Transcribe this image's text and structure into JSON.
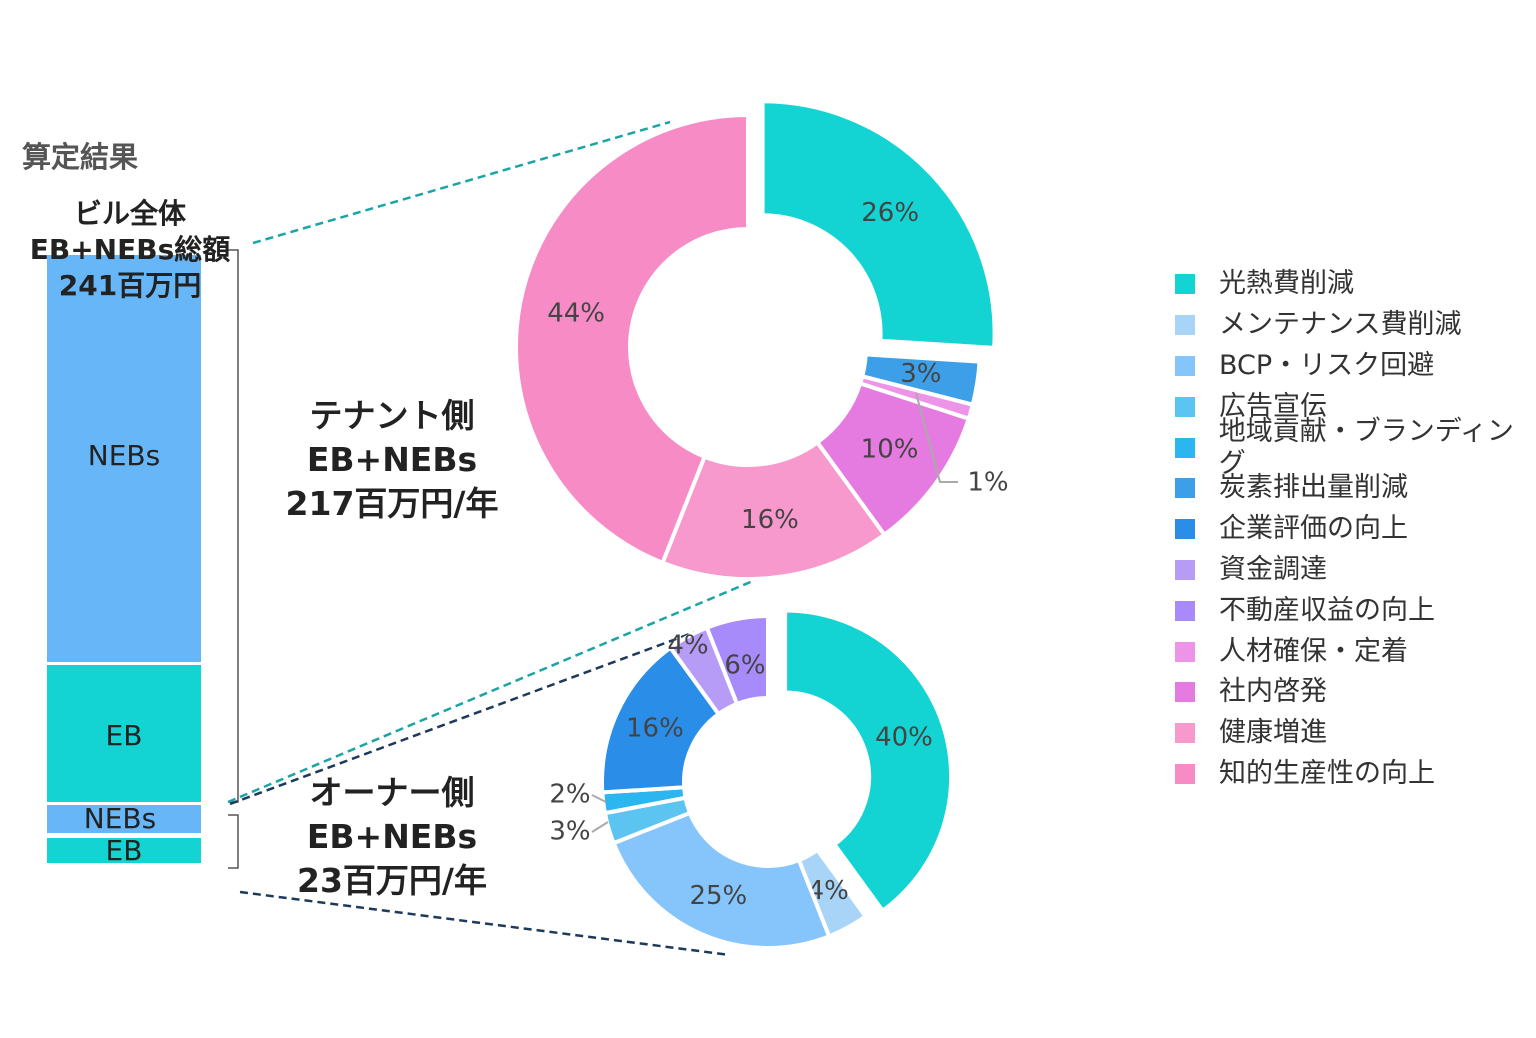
{
  "title": "算定結果",
  "total": {
    "line1": "ビル全体",
    "line2": "EB+NEBs総額",
    "line3": "241百万円"
  },
  "bar": {
    "segments": [
      {
        "label": "NEBs",
        "group": "tenant",
        "color": "#67b6f8"
      },
      {
        "label": "EB",
        "group": "tenant",
        "color": "#14d3d3"
      },
      {
        "label": "NEBs",
        "group": "owner",
        "color": "#67b6f8"
      },
      {
        "label": "EB",
        "group": "owner",
        "color": "#14d3d3"
      }
    ]
  },
  "tenant_label": {
    "line1": "テナント側",
    "line2": "EB+NEBs",
    "line3": "217百万円/年"
  },
  "owner_label": {
    "line1": "オーナー側",
    "line2": "EB+NEBs",
    "line3": "23百万円/年"
  },
  "legend": [
    {
      "label": "光熱費削減",
      "color": "#14d3d3"
    },
    {
      "label": "メンテナンス費削減",
      "color": "#a8d4f8"
    },
    {
      "label": "BCP・リスク回避",
      "color": "#86c5fb"
    },
    {
      "label": "広告宣伝",
      "color": "#5cc4f0"
    },
    {
      "label": "地域貢献・ブランディング",
      "color": "#2bb6f0"
    },
    {
      "label": "炭素排出量削減",
      "color": "#3d9fe8"
    },
    {
      "label": "企業評価の向上",
      "color": "#2a8ee8"
    },
    {
      "label": "資金調達",
      "color": "#b69cf6"
    },
    {
      "label": "不動産収益の向上",
      "color": "#a78bfa"
    },
    {
      "label": "人材確保・定着",
      "color": "#ee94e8"
    },
    {
      "label": "社内啓発",
      "color": "#e57ae0"
    },
    {
      "label": "健康増進",
      "color": "#f799cc"
    },
    {
      "label": "知的生産性の向上",
      "color": "#f78bc6"
    }
  ],
  "chart_data": [
    {
      "type": "pie",
      "name": "tenant",
      "donut": true,
      "slices": [
        {
          "category": "光熱費削減",
          "value": 26,
          "label": "26%",
          "exploded": true
        },
        {
          "category": "炭素排出量削減",
          "value": 3,
          "label": "3%"
        },
        {
          "category": "人材確保・定着",
          "value": 1,
          "label": "1%"
        },
        {
          "category": "社内啓発",
          "value": 10,
          "label": "10%"
        },
        {
          "category": "健康増進",
          "value": 16,
          "label": "16%"
        },
        {
          "category": "知的生産性の向上",
          "value": 44,
          "label": "44%"
        }
      ]
    },
    {
      "type": "pie",
      "name": "owner",
      "donut": true,
      "slices": [
        {
          "category": "光熱費削減",
          "value": 40,
          "label": "40%",
          "exploded": true
        },
        {
          "category": "メンテナンス費削減",
          "value": 4,
          "label": "4%"
        },
        {
          "category": "BCP・リスク回避",
          "value": 25,
          "label": "25%"
        },
        {
          "category": "広告宣伝",
          "value": 3,
          "label": "3%"
        },
        {
          "category": "地域貢献・ブランディング",
          "value": 2,
          "label": "2%"
        },
        {
          "category": "企業評価の向上",
          "value": 16,
          "label": "16%"
        },
        {
          "category": "資金調達",
          "value": 4,
          "label": "4%"
        },
        {
          "category": "不動産収益の向上",
          "value": 6,
          "label": "6%"
        }
      ]
    }
  ]
}
